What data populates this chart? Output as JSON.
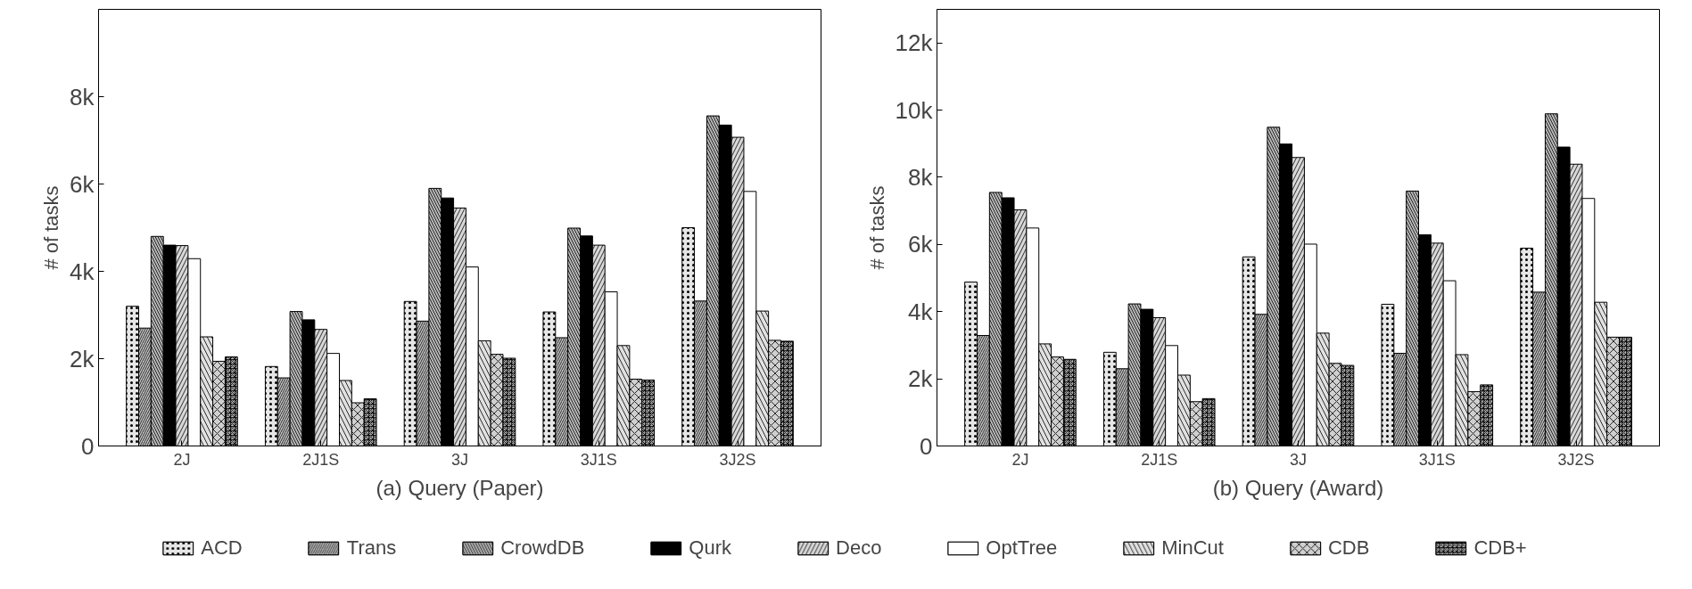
{
  "chart_data": [
    {
      "type": "bar",
      "xlabel": "(a) Query (Paper)",
      "ylabel": "# of tasks",
      "categories": [
        "2J",
        "2J1S",
        "3J",
        "3J1S",
        "3J2S"
      ],
      "ylim": [
        0,
        10000
      ],
      "yticks": [
        0,
        {
          "value": 2000,
          "label": "2k"
        },
        {
          "value": 4000,
          "label": "4k"
        },
        {
          "value": 6000,
          "label": "6k"
        },
        {
          "value": 8000,
          "label": "8k"
        }
      ],
      "grid": false,
      "legend": "bottom",
      "series": [
        {
          "name": "ACD",
          "color": "#e6e6e6",
          "values": [
            3200,
            1820,
            3310,
            3070,
            5000
          ]
        },
        {
          "name": "Trans",
          "color": "#c4c4c4",
          "values": [
            2700,
            1560,
            2860,
            2480,
            3320
          ]
        },
        {
          "name": "CrowdDB",
          "color": "#b8b8b8",
          "values": [
            4800,
            3080,
            5900,
            4990,
            7560
          ]
        },
        {
          "name": "Qurk",
          "color": "#000000",
          "values": [
            4600,
            2890,
            5680,
            4810,
            7350
          ]
        },
        {
          "name": "Deco",
          "color": "#d8d8d8",
          "values": [
            4590,
            2670,
            5450,
            4600,
            7070
          ]
        },
        {
          "name": "OptTree",
          "color": "#ffffff",
          "values": [
            4290,
            2120,
            4100,
            3530,
            5830
          ]
        },
        {
          "name": "MinCut",
          "color": "#e0e0e0",
          "values": [
            2500,
            1500,
            2410,
            2300,
            3090
          ]
        },
        {
          "name": "CDB",
          "color": "#cfcfcf",
          "values": [
            1940,
            990,
            2100,
            1530,
            2420
          ]
        },
        {
          "name": "CDB+",
          "color": "#a8a8a8",
          "values": [
            2040,
            1080,
            2010,
            1510,
            2400
          ]
        }
      ]
    },
    {
      "type": "bar",
      "xlabel": "(b) Query (Award)",
      "ylabel": "# of tasks",
      "categories": [
        "2J",
        "2J1S",
        "3J",
        "3J1S",
        "3J2S"
      ],
      "ylim": [
        0,
        13000
      ],
      "yticks": [
        0,
        {
          "value": 2000,
          "label": "2k"
        },
        {
          "value": 4000,
          "label": "4k"
        },
        {
          "value": 6000,
          "label": "6k"
        },
        {
          "value": 8000,
          "label": "8k"
        },
        {
          "value": 10000,
          "label": "10k"
        },
        {
          "value": 12000,
          "label": "12k"
        }
      ],
      "grid": false,
      "series": [
        {
          "name": "ACD",
          "color": "#e6e6e6",
          "values": [
            4880,
            2790,
            5630,
            4220,
            5890
          ]
        },
        {
          "name": "Trans",
          "color": "#c4c4c4",
          "values": [
            3290,
            2300,
            3920,
            2760,
            4580
          ]
        },
        {
          "name": "CrowdDB",
          "color": "#b8b8b8",
          "values": [
            7550,
            4230,
            9490,
            7590,
            9890
          ]
        },
        {
          "name": "Qurk",
          "color": "#000000",
          "values": [
            7390,
            4070,
            8990,
            6290,
            8900
          ]
        },
        {
          "name": "Deco",
          "color": "#d8d8d8",
          "values": [
            7030,
            3820,
            8590,
            6040,
            8390
          ]
        },
        {
          "name": "OptTree",
          "color": "#ffffff",
          "values": [
            6490,
            2990,
            6010,
            4920,
            7370
          ]
        },
        {
          "name": "MinCut",
          "color": "#e0e0e0",
          "values": [
            3040,
            2110,
            3360,
            2720,
            4280
          ]
        },
        {
          "name": "CDB",
          "color": "#cfcfcf",
          "values": [
            2650,
            1320,
            2460,
            1620,
            3240
          ]
        },
        {
          "name": "CDB+",
          "color": "#a8a8a8",
          "values": [
            2580,
            1410,
            2400,
            1820,
            3240
          ]
        }
      ]
    }
  ]
}
